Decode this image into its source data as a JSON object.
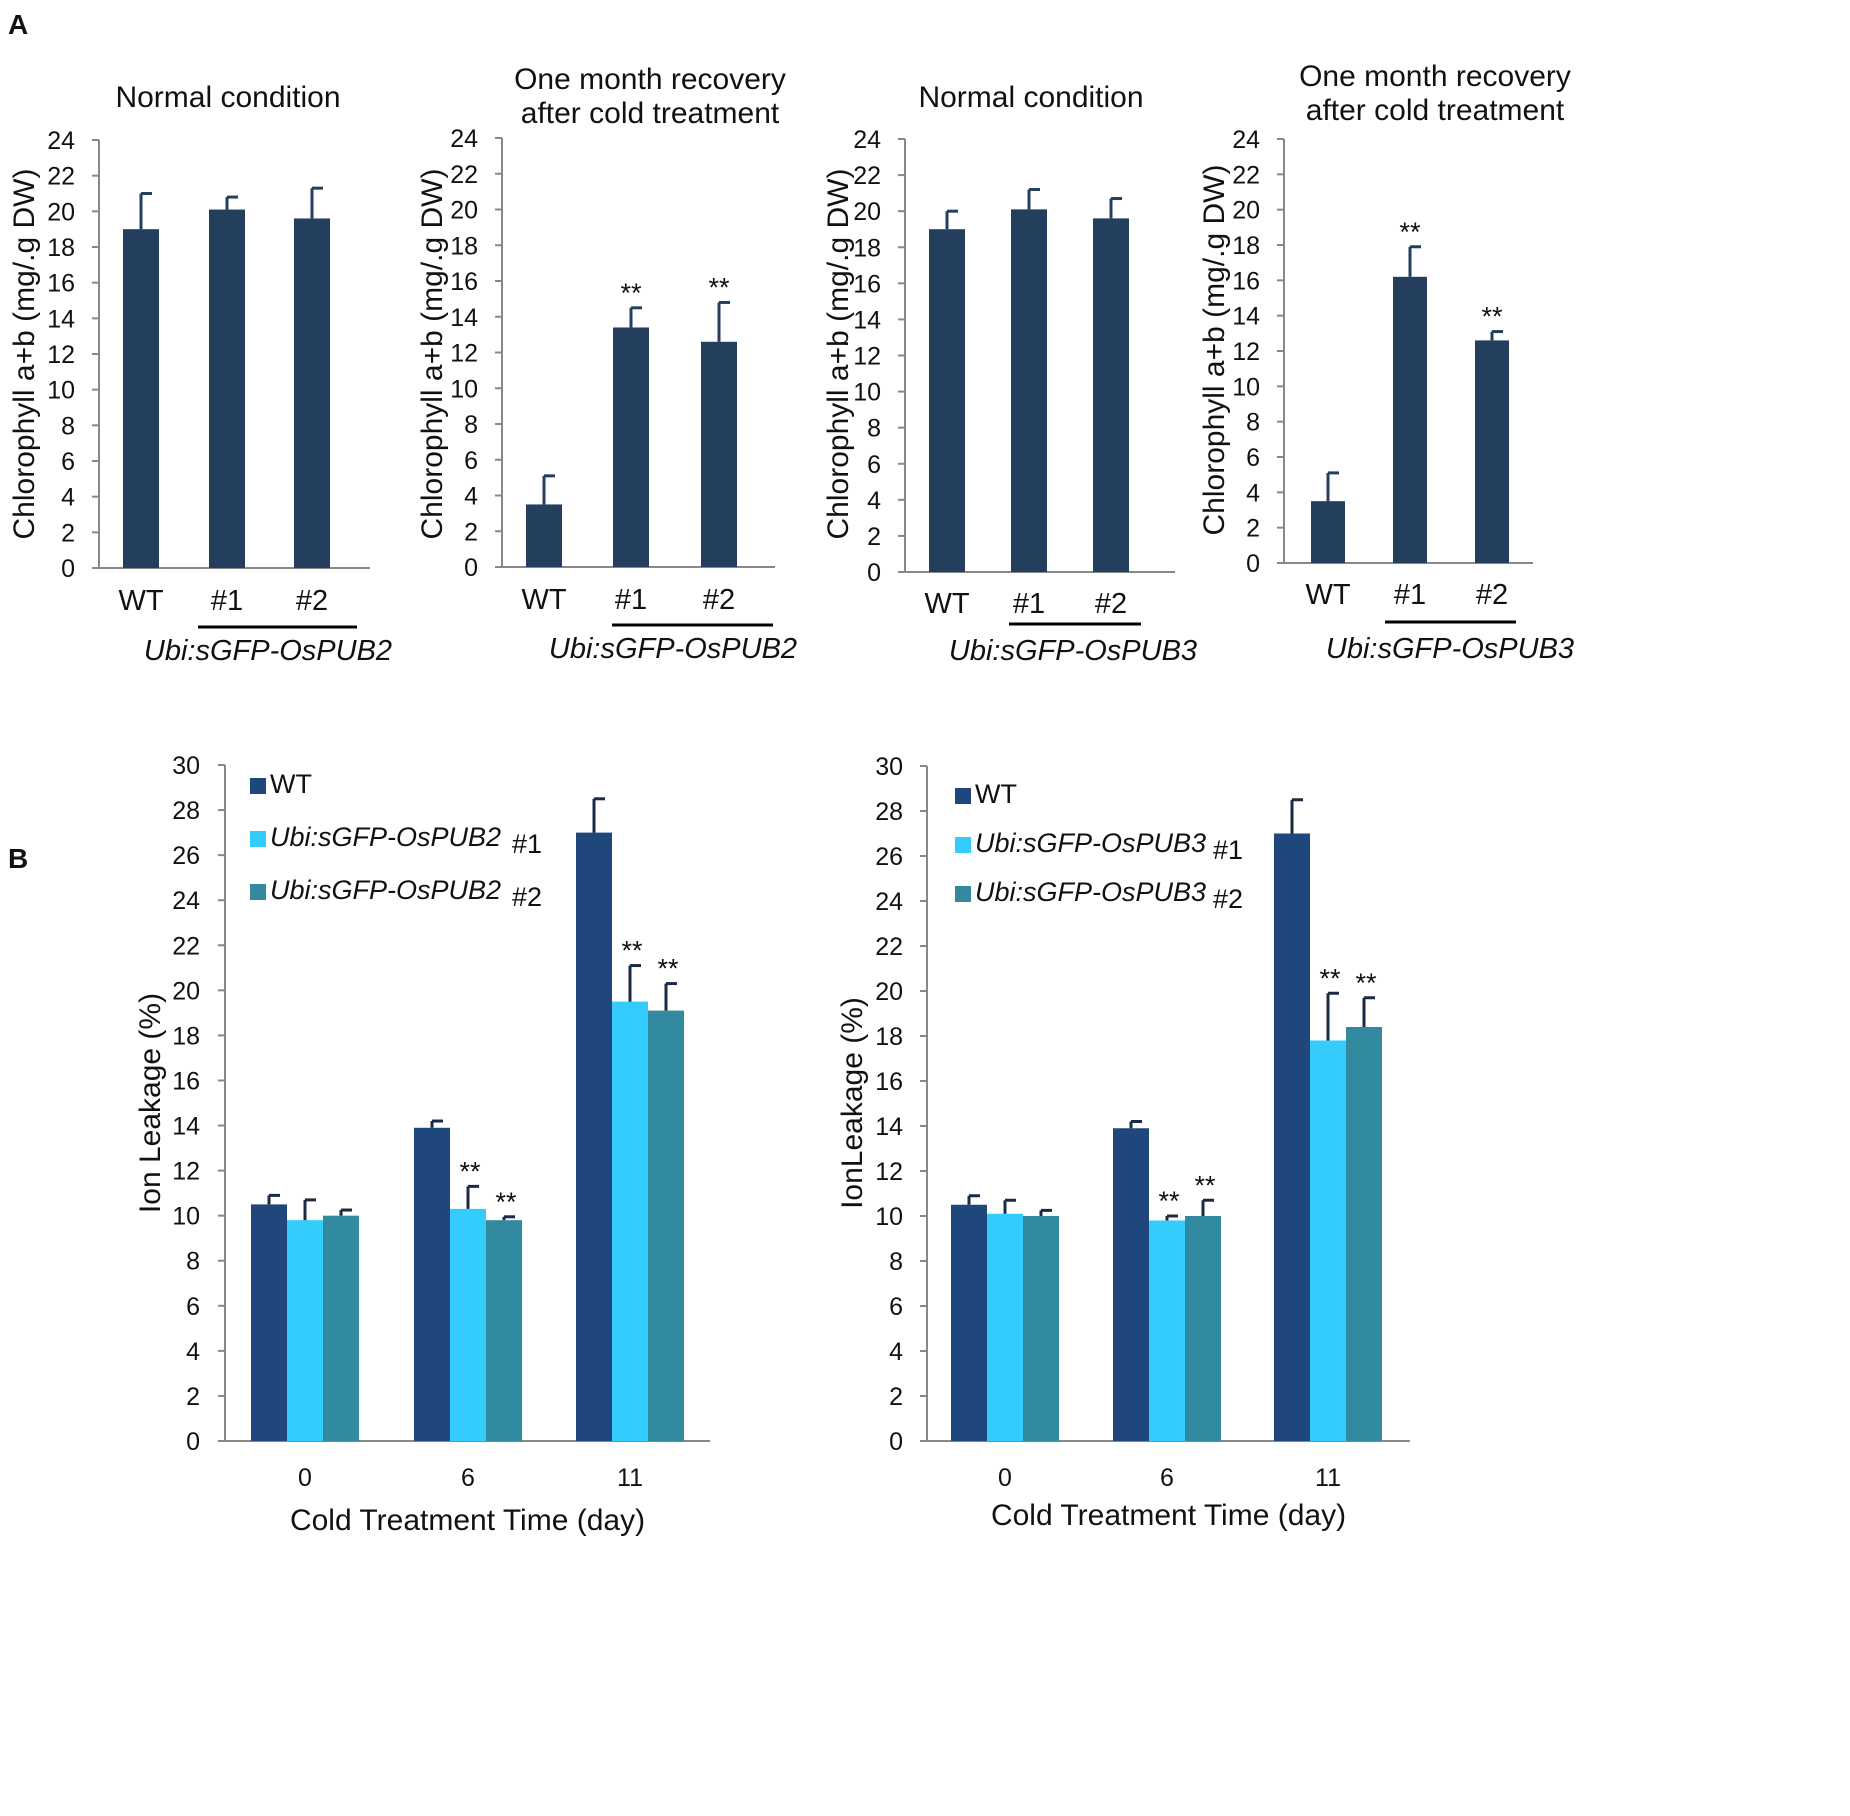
{
  "panel_labels": {
    "a": "A",
    "b": "B"
  },
  "colors": {
    "wt_a": "#243f5e",
    "wt_b": "#1f477b",
    "line1": "#33ccfd",
    "line2": "#318a9f",
    "axis": "#888888",
    "text": "#111111"
  },
  "chart_data": [
    {
      "type": "bar",
      "panel": "A",
      "title": "Normal condition",
      "ylabel": "Chlorophyll a+b (mg/.g DW)",
      "ylim": [
        0,
        24
      ],
      "yticks": [
        "0",
        "2",
        "4",
        "6",
        "8",
        "10",
        "12",
        "14",
        "16",
        "18",
        "20",
        "22",
        "24"
      ],
      "categories": [
        "WT",
        "#1",
        "#2"
      ],
      "values": [
        19.0,
        20.1,
        19.6
      ],
      "errors": [
        2.0,
        0.7,
        1.7
      ],
      "significance": [
        "",
        "",
        ""
      ],
      "group_label": "Ubi:sGFP-OsPUB2"
    },
    {
      "type": "bar",
      "panel": "A",
      "title": "One month recovery after cold treatment",
      "title_lines": [
        "One month recovery",
        "after cold treatment"
      ],
      "ylabel": "Chlorophyll a+b (mg/.g DW)",
      "ylim": [
        0,
        24
      ],
      "yticks": [
        "0",
        "2",
        "4",
        "6",
        "8",
        "10",
        "12",
        "14",
        "16",
        "18",
        "20",
        "22",
        "24"
      ],
      "categories": [
        "WT",
        "#1",
        "#2"
      ],
      "values": [
        3.5,
        13.4,
        12.6
      ],
      "errors": [
        1.6,
        1.1,
        2.2
      ],
      "significance": [
        "",
        "**",
        "**"
      ],
      "group_label": "Ubi:sGFP-OsPUB2"
    },
    {
      "type": "bar",
      "panel": "A",
      "title": "Normal condition",
      "ylabel": "Chlorophyll a+b (mg/.g DW)",
      "ylim": [
        0,
        24
      ],
      "yticks": [
        "0",
        "2",
        "4",
        "6",
        "8",
        "10",
        "12",
        "14",
        "16",
        "18",
        "20",
        "22",
        "24"
      ],
      "categories": [
        "WT",
        "#1",
        "#2"
      ],
      "values": [
        19.0,
        20.1,
        19.6
      ],
      "errors": [
        1.0,
        1.1,
        1.1
      ],
      "significance": [
        "",
        "",
        ""
      ],
      "group_label": "Ubi:sGFP-OsPUB3"
    },
    {
      "type": "bar",
      "panel": "A",
      "title": "One month recovery after cold treatment",
      "title_lines": [
        "One month recovery",
        "after cold treatment"
      ],
      "ylabel": "Chlorophyll a+b (mg/.g DW)",
      "ylim": [
        0,
        24
      ],
      "yticks": [
        "0",
        "2",
        "4",
        "6",
        "8",
        "10",
        "12",
        "14",
        "16",
        "18",
        "20",
        "22",
        "24"
      ],
      "categories": [
        "WT",
        "#1",
        "#2"
      ],
      "values": [
        3.5,
        16.2,
        12.6
      ],
      "errors": [
        1.6,
        1.7,
        0.5
      ],
      "significance": [
        "",
        "**",
        "**"
      ],
      "group_label": "Ubi:sGFP-OsPUB3"
    },
    {
      "type": "bar",
      "panel": "B",
      "xlabel": "Cold Treatment Time (day)",
      "ylabel": "Ion Leakage (%)",
      "ylim": [
        0,
        30
      ],
      "yticks": [
        "0",
        "2",
        "4",
        "6",
        "8",
        "10",
        "12",
        "14",
        "16",
        "18",
        "20",
        "22",
        "24",
        "26",
        "28",
        "30"
      ],
      "categories": [
        "0",
        "6",
        "11"
      ],
      "series": [
        {
          "name": "WT",
          "name_italic": "WT",
          "line": "",
          "values": [
            10.5,
            13.9,
            27.0
          ],
          "errors": [
            0.4,
            0.3,
            1.5
          ],
          "significance": [
            "",
            "",
            ""
          ]
        },
        {
          "name": "Ubi:sGFP-OsPUB2 #1",
          "name_italic": "Ubi:sGFP-OsPUB2",
          "line": "#1",
          "values": [
            9.8,
            10.3,
            19.5
          ],
          "errors": [
            0.9,
            1.0,
            1.6
          ],
          "significance": [
            "",
            "**",
            "**"
          ]
        },
        {
          "name": "Ubi:sGFP-OsPUB2 #2",
          "name_italic": "Ubi:sGFP-OsPUB2",
          "line": "#2",
          "values": [
            10.0,
            9.8,
            19.1
          ],
          "errors": [
            0.25,
            0.15,
            1.2
          ],
          "significance": [
            "",
            "**",
            "**"
          ]
        }
      ],
      "legend": "top-left"
    },
    {
      "type": "bar",
      "panel": "B",
      "xlabel": "Cold Treatment Time (day)",
      "ylabel": "IonLeakage (%)",
      "ylim": [
        0,
        30
      ],
      "yticks": [
        "0",
        "2",
        "4",
        "6",
        "8",
        "10",
        "12",
        "14",
        "16",
        "18",
        "20",
        "22",
        "24",
        "26",
        "28",
        "30"
      ],
      "categories": [
        "0",
        "6",
        "11"
      ],
      "series": [
        {
          "name": "WT",
          "name_italic": "WT",
          "line": "",
          "values": [
            10.5,
            13.9,
            27.0
          ],
          "errors": [
            0.4,
            0.3,
            1.5
          ],
          "significance": [
            "",
            "",
            ""
          ]
        },
        {
          "name": "Ubi:sGFP-OsPUB3 #1",
          "name_italic": "Ubi:sGFP-OsPUB3",
          "line": "#1",
          "values": [
            10.1,
            9.8,
            17.8
          ],
          "errors": [
            0.6,
            0.2,
            2.1
          ],
          "significance": [
            "",
            "**",
            "**"
          ]
        },
        {
          "name": "Ubi:sGFP-OsPUB3 #2",
          "name_italic": "Ubi:sGFP-OsPUB3",
          "line": "#2",
          "values": [
            10.0,
            10.0,
            18.4
          ],
          "errors": [
            0.25,
            0.7,
            1.3
          ],
          "significance": [
            "",
            "**",
            "**"
          ]
        }
      ],
      "legend": "top-left"
    }
  ]
}
